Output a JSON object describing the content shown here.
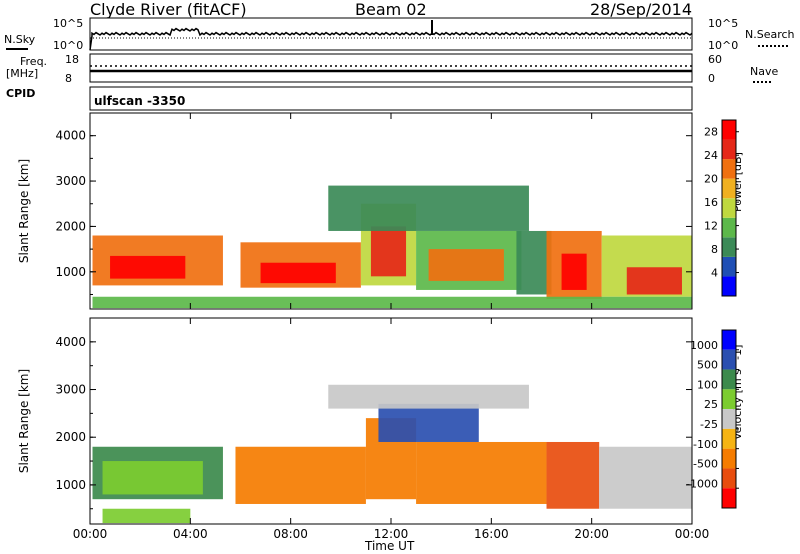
{
  "header": {
    "station": "Clyde River (fitACF)",
    "beam": "Beam 02",
    "date": "28/Sep/2014"
  },
  "nsky": {
    "label": "N.Sky",
    "top_tick": "10^5",
    "bottom_tick": "10^0"
  },
  "nsearch": {
    "label": "N.Search",
    "top_tick": "10^5",
    "bottom_tick": "10^0"
  },
  "freq": {
    "label_1": "Freq.",
    "label_2": "[MHz]",
    "top_tick": "18",
    "bottom_tick": "8"
  },
  "nave": {
    "label": "Nave",
    "top_tick": "60",
    "bottom_tick": "0"
  },
  "cpid": {
    "label": "CPID",
    "value": "ulfscan  -3350"
  },
  "xaxis": {
    "label": "Time UT"
  },
  "colors": {
    "power": [
      "#0000ff",
      "#1f4fb5",
      "#3b8a57",
      "#5cb84a",
      "#bfd83f",
      "#f0b020",
      "#f07010",
      "#e52818",
      "#ff0000"
    ],
    "velocity": [
      "#0000ff",
      "#2a4fb0",
      "#3c8a4c",
      "#7ccc30",
      "#c8c8c8",
      "#f5b414",
      "#f57c00",
      "#e84d0e",
      "#ff0000"
    ]
  },
  "chart_data": [
    {
      "type": "heatmap",
      "name": "power",
      "xlabel": "Time UT",
      "ylabel": "Slant Range [km]",
      "x_ticks": [
        "00:00",
        "04:00",
        "08:00",
        "12:00",
        "16:00",
        "20:00",
        "00:00"
      ],
      "xlim": [
        0,
        24
      ],
      "y_ticks": [
        "1000",
        "2000",
        "3000",
        "4000"
      ],
      "ylim": [
        180,
        4500
      ],
      "colorbar": {
        "label": "Power [dB]",
        "ticks": [
          "4",
          "8",
          "12",
          "16",
          "20",
          "24",
          "28"
        ],
        "range": [
          0,
          30
        ]
      },
      "regions": [
        {
          "t": [
            0.1,
            5.3
          ],
          "r": [
            700,
            1800
          ],
          "v": 22
        },
        {
          "t": [
            0.8,
            3.8
          ],
          "r": [
            850,
            1350
          ],
          "v": 29
        },
        {
          "t": [
            6.0,
            10.8
          ],
          "r": [
            650,
            1650
          ],
          "v": 20
        },
        {
          "t": [
            6.8,
            9.8
          ],
          "r": [
            750,
            1200
          ],
          "v": 28
        },
        {
          "t": [
            10.8,
            13.0
          ],
          "r": [
            700,
            2500
          ],
          "v": 16
        },
        {
          "t": [
            11.2,
            12.6
          ],
          "r": [
            900,
            2000
          ],
          "v": 25
        },
        {
          "t": [
            13.0,
            17.2
          ],
          "r": [
            600,
            1900
          ],
          "v": 12
        },
        {
          "t": [
            13.5,
            16.5
          ],
          "r": [
            800,
            1500
          ],
          "v": 22
        },
        {
          "t": [
            17.0,
            18.4
          ],
          "r": [
            500,
            1900
          ],
          "v": 7
        },
        {
          "t": [
            18.2,
            20.4
          ],
          "r": [
            400,
            1900
          ],
          "v": 22
        },
        {
          "t": [
            18.8,
            19.8
          ],
          "r": [
            600,
            1400
          ],
          "v": 29
        },
        {
          "t": [
            20.4,
            24.0
          ],
          "r": [
            450,
            1800
          ],
          "v": 14
        },
        {
          "t": [
            21.4,
            23.6
          ],
          "r": [
            500,
            1100
          ],
          "v": 25
        },
        {
          "t": [
            9.5,
            17.5
          ],
          "r": [
            1900,
            2900
          ],
          "v": 8
        },
        {
          "t": [
            0.1,
            24.0
          ],
          "r": [
            200,
            450
          ],
          "v": 12
        }
      ]
    },
    {
      "type": "heatmap",
      "name": "velocity",
      "xlabel": "Time UT",
      "ylabel": "Slant Range [km]",
      "x_ticks": [
        "00:00",
        "04:00",
        "08:00",
        "12:00",
        "16:00",
        "20:00",
        "00:00"
      ],
      "xlim": [
        0,
        24
      ],
      "y_ticks": [
        "1000",
        "2000",
        "3000",
        "4000"
      ],
      "ylim": [
        180,
        4500
      ],
      "colorbar": {
        "label": "Velocity [m s^-1]",
        "ticks": [
          "1000",
          "500",
          "100",
          "25",
          "-25",
          "-100",
          "-500",
          "-1000"
        ]
      },
      "regions": [
        {
          "t": [
            0.1,
            5.3
          ],
          "r": [
            700,
            1800
          ],
          "v": 2
        },
        {
          "t": [
            0.5,
            4.5
          ],
          "r": [
            800,
            1500
          ],
          "v": 3
        },
        {
          "t": [
            5.8,
            11.0
          ],
          "r": [
            600,
            1800
          ],
          "v": 6
        },
        {
          "t": [
            11.0,
            13.0
          ],
          "r": [
            700,
            2400
          ],
          "v": 6
        },
        {
          "t": [
            13.0,
            18.2
          ],
          "r": [
            600,
            1900
          ],
          "v": 6
        },
        {
          "t": [
            18.2,
            20.3
          ],
          "r": [
            500,
            1900
          ],
          "v": 7
        },
        {
          "t": [
            20.3,
            24.0
          ],
          "r": [
            500,
            1800
          ],
          "v": 4
        },
        {
          "t": [
            0.5,
            4.0
          ],
          "r": [
            200,
            500
          ],
          "v": 3
        },
        {
          "t": [
            11.5,
            15.5
          ],
          "r": [
            1900,
            2700
          ],
          "v": 1
        },
        {
          "t": [
            9.5,
            17.5
          ],
          "r": [
            2600,
            3100
          ],
          "v": 4
        }
      ]
    }
  ]
}
